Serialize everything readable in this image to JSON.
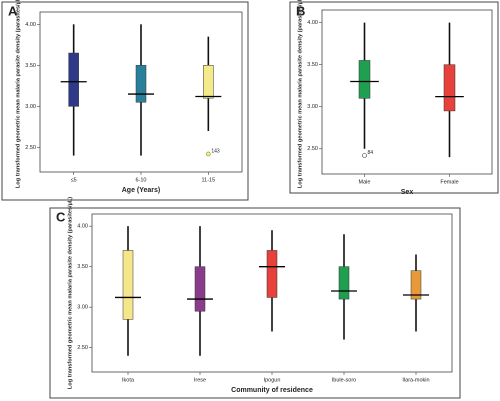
{
  "chart_data": [
    {
      "type": "box",
      "panel_label": "A",
      "x_label": "Age (Years)",
      "y_label": "Log transformed geometric mean malaria parasite density (parasites/µL)",
      "categories": [
        "≤5",
        "6-10",
        "11-15"
      ],
      "ylim": [
        2.2,
        4.15
      ],
      "yticks": [
        {
          "value": 2.5,
          "label": "2.50"
        },
        {
          "value": 3.0,
          "label": "3.00"
        },
        {
          "value": 3.5,
          "label": "3.50"
        },
        {
          "value": 4.0,
          "label": "4.00"
        }
      ],
      "boxes": [
        {
          "color": "#2e3a87",
          "min": 2.4,
          "q1": 3.0,
          "median": 3.3,
          "q3": 3.65,
          "max": 4.0,
          "outliers": []
        },
        {
          "color": "#2a7f9a",
          "min": 2.4,
          "q1": 3.05,
          "median": 3.15,
          "q3": 3.5,
          "max": 4.0,
          "outliers": []
        },
        {
          "color": "#f5ea8a",
          "min": 2.7,
          "q1": 3.1,
          "median": 3.12,
          "q3": 3.5,
          "max": 3.85,
          "outliers": [
            {
              "value": 2.42,
              "label": "143"
            }
          ]
        }
      ]
    },
    {
      "type": "box",
      "panel_label": "B",
      "x_label": "Sex",
      "y_label": "Log transformed geometric mean malaria parasite density (parasites/µL)",
      "categories": [
        "Male",
        "Female"
      ],
      "ylim": [
        2.2,
        4.15
      ],
      "yticks": [
        {
          "value": 2.5,
          "label": "2.50"
        },
        {
          "value": 3.0,
          "label": "3.00"
        },
        {
          "value": 3.5,
          "label": "3.50"
        },
        {
          "value": 4.0,
          "label": "4.00"
        }
      ],
      "boxes": [
        {
          "color": "#1fa050",
          "min": 2.5,
          "q1": 3.1,
          "median": 3.3,
          "q3": 3.55,
          "max": 4.0,
          "outliers": [
            {
              "value": 2.42,
              "label": "84"
            }
          ]
        },
        {
          "color": "#e8403a",
          "min": 2.4,
          "q1": 2.95,
          "median": 3.12,
          "q3": 3.5,
          "max": 4.0,
          "outliers": []
        }
      ]
    },
    {
      "type": "box",
      "panel_label": "C",
      "x_label": "Community of residence",
      "y_label": "Log transformed geometric mean malaria parasite density (parasites/µL)",
      "categories": [
        "Ikota",
        "Irese",
        "Ipogun",
        "Ibule-soro",
        "Ilara-mokin"
      ],
      "ylim": [
        2.2,
        4.15
      ],
      "yticks": [
        {
          "value": 2.5,
          "label": "2.50"
        },
        {
          "value": 3.0,
          "label": "3.00"
        },
        {
          "value": 3.5,
          "label": "3.50"
        },
        {
          "value": 4.0,
          "label": "4.00"
        }
      ],
      "boxes": [
        {
          "color": "#f5e68a",
          "min": 2.4,
          "q1": 2.85,
          "median": 3.12,
          "q3": 3.7,
          "max": 4.0,
          "outliers": []
        },
        {
          "color": "#8a3c8a",
          "min": 2.4,
          "q1": 2.95,
          "median": 3.1,
          "q3": 3.5,
          "max": 4.0,
          "outliers": []
        },
        {
          "color": "#e8403a",
          "min": 2.7,
          "q1": 3.12,
          "median": 3.5,
          "q3": 3.7,
          "max": 3.95,
          "outliers": []
        },
        {
          "color": "#1fa050",
          "min": 2.6,
          "q1": 3.1,
          "median": 3.2,
          "q3": 3.5,
          "max": 3.9,
          "outliers": []
        },
        {
          "color": "#e89a3a",
          "min": 2.7,
          "q1": 3.1,
          "median": 3.15,
          "q3": 3.45,
          "max": 3.65,
          "outliers": []
        }
      ]
    }
  ]
}
